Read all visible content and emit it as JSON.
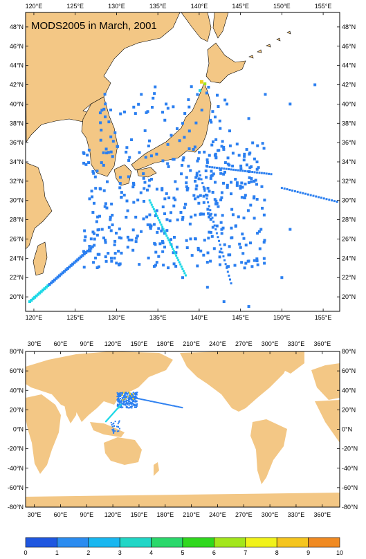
{
  "title": "MODS2005 in March, 2001",
  "regional_map": {
    "lon_labels": [
      "120°E",
      "125°E",
      "130°E",
      "135°E",
      "140°E",
      "145°E",
      "150°E",
      "155°E"
    ],
    "lon_values": [
      120,
      125,
      130,
      135,
      140,
      145,
      150,
      155
    ],
    "lat_labels": [
      "20°N",
      "22°N",
      "24°N",
      "26°N",
      "28°N",
      "30°N",
      "32°N",
      "34°N",
      "36°N",
      "38°N",
      "40°N",
      "42°N",
      "44°N",
      "46°N",
      "48°N"
    ],
    "lat_values": [
      20,
      22,
      24,
      26,
      28,
      30,
      32,
      34,
      36,
      38,
      40,
      42,
      44,
      46,
      48
    ],
    "lon_range": [
      119,
      157
    ],
    "lat_range": [
      18.5,
      49.5
    ]
  },
  "global_map": {
    "lon_labels": [
      "30°E",
      "60°E",
      "90°E",
      "120°E",
      "150°E",
      "180°E",
      "210°E",
      "240°E",
      "270°E",
      "300°E",
      "330°E",
      "360°E"
    ],
    "lon_values": [
      30,
      60,
      90,
      120,
      150,
      180,
      210,
      240,
      270,
      300,
      330,
      360
    ],
    "lat_labels": [
      "80°N",
      "60°N",
      "40°N",
      "20°N",
      "0°N",
      "-20°N",
      "-40°N",
      "-60°N",
      "-80°N"
    ],
    "lat_values": [
      80,
      60,
      40,
      20,
      0,
      -20,
      -40,
      -60,
      -80
    ],
    "lon_range": [
      20,
      380
    ],
    "lat_range": [
      -80,
      80
    ]
  },
  "colorbar": {
    "labels": [
      "0",
      "1",
      "2",
      "3",
      "4",
      "5",
      "6",
      "7",
      "8",
      "9",
      "10"
    ],
    "colors": [
      "#1f57e0",
      "#2b8cf0",
      "#19b7f0",
      "#21d6c6",
      "#2ad86b",
      "#30d81e",
      "#a3e61c",
      "#f1f21a",
      "#f5c51e",
      "#f08a22",
      "#e5451f"
    ]
  },
  "colors": {
    "land": "#f3c785",
    "ocean": "#ffffff",
    "obs_low": "#2b7ff0",
    "obs_mid": "#1cd8e6",
    "obs_high": "#f0d020"
  }
}
